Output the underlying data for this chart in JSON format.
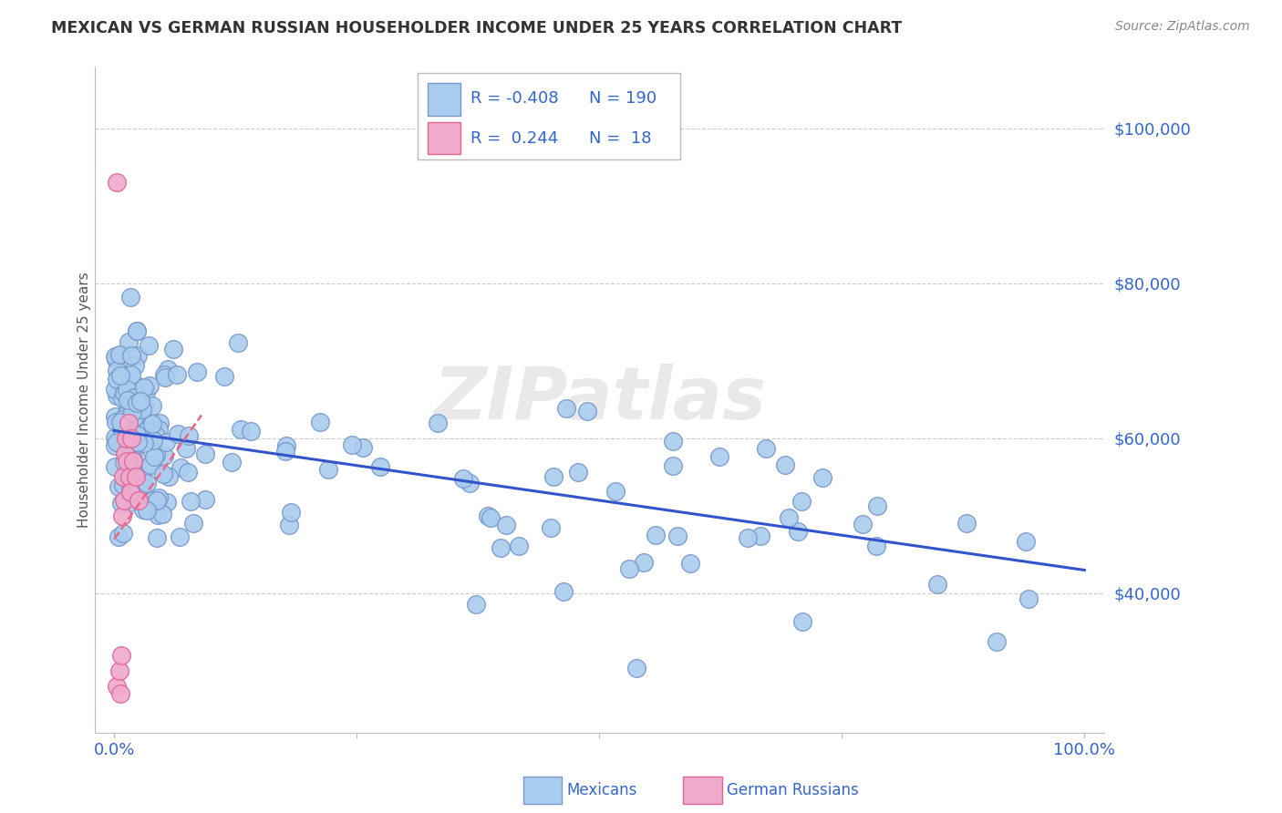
{
  "title": "MEXICAN VS GERMAN RUSSIAN HOUSEHOLDER INCOME UNDER 25 YEARS CORRELATION CHART",
  "source": "Source: ZipAtlas.com",
  "ylabel": "Householder Income Under 25 years",
  "xlim": [
    -0.02,
    1.02
  ],
  "ylim": [
    22000,
    108000
  ],
  "yticks": [
    40000,
    60000,
    80000,
    100000
  ],
  "ytick_labels": [
    "$40,000",
    "$60,000",
    "$80,000",
    "$100,000"
  ],
  "xtick_positions": [
    0.0,
    0.25,
    0.5,
    0.75,
    1.0
  ],
  "xtick_labels": [
    "0.0%",
    "",
    "",
    "",
    "100.0%"
  ],
  "grid_color": "#cccccc",
  "title_color": "#333333",
  "title_fontsize": 12.5,
  "watermark": "ZIPatlas",
  "watermark_color": "#d0d0d0",
  "mexicans_color": "#aaccee",
  "mexicans_edge_color": "#7799cc",
  "german_russians_color": "#f0aacc",
  "german_russians_edge_color": "#dd6699",
  "blue_line_color": "#3355cc",
  "pink_line_color": "#ee6688",
  "legend_text_color": "#3366cc",
  "axis_tick_color": "#3366cc",
  "legend_R1": "-0.408",
  "legend_N1": "190",
  "legend_R2": "0.244",
  "legend_N2": "18",
  "blue_line_x": [
    0.0,
    1.0
  ],
  "blue_line_y": [
    61000,
    43000
  ],
  "pink_line_x": [
    0.0,
    0.09
  ],
  "pink_line_y": [
    47000,
    63000
  ]
}
